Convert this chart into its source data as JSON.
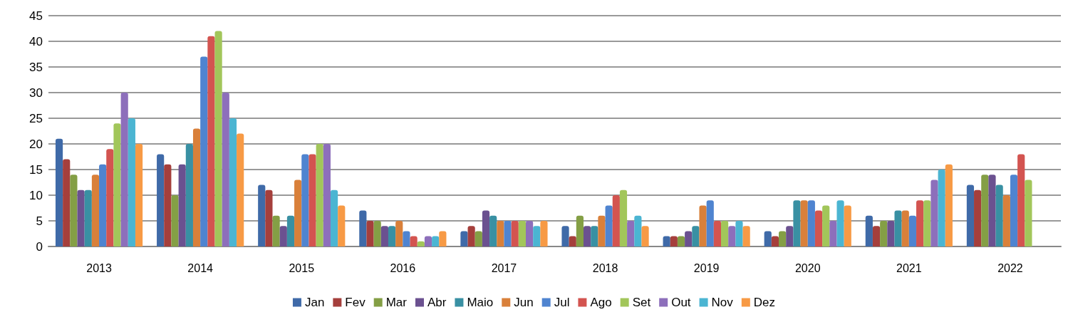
{
  "chart_data": {
    "type": "bar",
    "categories": [
      "2013",
      "2014",
      "2015",
      "2016",
      "2017",
      "2018",
      "2019",
      "2020",
      "2021",
      "2022"
    ],
    "series": [
      {
        "name": "Jan",
        "color": "#3f6aa8",
        "values": [
          21,
          18,
          12,
          7,
          3,
          4,
          2,
          3,
          6,
          12
        ]
      },
      {
        "name": "Fev",
        "color": "#a53f3c",
        "values": [
          17,
          16,
          11,
          5,
          4,
          2,
          2,
          2,
          4,
          11
        ]
      },
      {
        "name": "Mar",
        "color": "#849f45",
        "values": [
          14,
          10,
          6,
          5,
          3,
          6,
          2,
          3,
          5,
          14
        ]
      },
      {
        "name": "Abr",
        "color": "#6b5190",
        "values": [
          11,
          16,
          4,
          4,
          7,
          4,
          3,
          4,
          5,
          14
        ]
      },
      {
        "name": "Maio",
        "color": "#3990a3",
        "values": [
          11,
          20,
          6,
          4,
          6,
          4,
          4,
          9,
          7,
          12
        ]
      },
      {
        "name": "Jun",
        "color": "#d9803a",
        "values": [
          14,
          23,
          13,
          5,
          5,
          6,
          8,
          9,
          7,
          10
        ]
      },
      {
        "name": "Jul",
        "color": "#4f84d0",
        "values": [
          16,
          37,
          18,
          3,
          5,
          8,
          9,
          9,
          6,
          14
        ]
      },
      {
        "name": "Ago",
        "color": "#d35450",
        "values": [
          19,
          41,
          18,
          2,
          5,
          10,
          5,
          7,
          9,
          18
        ]
      },
      {
        "name": "Set",
        "color": "#a2c65a",
        "values": [
          24,
          42,
          20,
          1,
          5,
          11,
          5,
          8,
          9,
          13
        ]
      },
      {
        "name": "Out",
        "color": "#8d6fbb",
        "values": [
          30,
          30,
          20,
          2,
          5,
          5,
          4,
          5,
          13,
          null
        ]
      },
      {
        "name": "Nov",
        "color": "#4bb5d2",
        "values": [
          25,
          25,
          11,
          2,
          4,
          6,
          5,
          9,
          15,
          null
        ]
      },
      {
        "name": "Dez",
        "color": "#f79a45",
        "values": [
          20,
          22,
          8,
          3,
          5,
          4,
          4,
          8,
          16,
          null
        ]
      }
    ],
    "ylim": [
      0,
      45
    ],
    "yticks": [
      0,
      5,
      10,
      15,
      20,
      25,
      30,
      35,
      40,
      45
    ],
    "grid": "y",
    "legend": "bottom"
  }
}
